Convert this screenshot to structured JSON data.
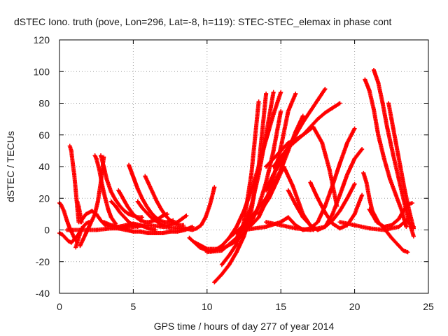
{
  "chart_data": {
    "type": "scatter",
    "title": "dSTEC Iono. truth (pove, Lon=296, Lat=-8, h=119): STEC-STEC_elemax in phase cont",
    "xlabel": "GPS time / hours of day 277 of year 2014",
    "ylabel": "dSTEC  / TECUs",
    "xlim": [
      0,
      25
    ],
    "ylim": [
      -40,
      120
    ],
    "xticks": [
      0,
      5,
      10,
      15,
      20,
      25
    ],
    "yticks": [
      -40,
      -20,
      0,
      20,
      40,
      60,
      80,
      100,
      120
    ],
    "grid": true,
    "marker": "plus",
    "color": "#ff0000",
    "series": [
      {
        "x": [
          0.0,
          0.1,
          0.3,
          0.5,
          0.7,
          0.9,
          1.1
        ],
        "y": [
          17,
          16,
          12,
          6,
          1,
          -3,
          -7
        ]
      },
      {
        "x": [
          0.0,
          0.2,
          0.4,
          0.6,
          0.8,
          1.0,
          1.2,
          1.4,
          1.6,
          1.8,
          2.0
        ],
        "y": [
          -2,
          -3,
          -5,
          -7,
          -8,
          -6,
          -4,
          -1,
          2,
          4,
          5
        ]
      },
      {
        "x": [
          0.7,
          0.8,
          0.9,
          1.0,
          1.1,
          1.2,
          1.3
        ],
        "y": [
          53,
          50,
          42,
          35,
          25,
          15,
          5
        ]
      },
      {
        "x": [
          1.1,
          1.2,
          1.3,
          1.4,
          1.5
        ],
        "y": [
          -11,
          -8,
          -5,
          -2,
          1
        ]
      },
      {
        "x": [
          1.2,
          1.3,
          1.4,
          1.5
        ],
        "y": [
          18,
          15,
          10,
          5
        ]
      },
      {
        "x": [
          1.4,
          1.6,
          1.8,
          2.0,
          2.2,
          2.4,
          2.6,
          2.8,
          3.0
        ],
        "y": [
          -10,
          -6,
          -2,
          2,
          6,
          10,
          18,
          30,
          46
        ]
      },
      {
        "x": [
          1.4,
          1.8,
          2.2,
          2.5,
          2.8,
          3.1,
          3.5
        ],
        "y": [
          5,
          10,
          12,
          10,
          6,
          3,
          2
        ]
      },
      {
        "x": [
          2.4,
          2.5,
          2.7,
          2.9,
          3.1,
          3.3,
          3.5,
          3.8
        ],
        "y": [
          47,
          45,
          38,
          28,
          20,
          13,
          8,
          4
        ]
      },
      {
        "x": [
          2.8,
          3.0,
          3.2,
          3.5,
          3.8,
          4.1,
          4.4,
          4.7,
          5.0,
          5.3,
          5.6
        ],
        "y": [
          47,
          40,
          32,
          24,
          19,
          15,
          12,
          10,
          9,
          8,
          8
        ]
      },
      {
        "x": [
          3.0,
          3.5,
          4.0,
          4.5,
          5.0,
          5.5,
          6.0,
          6.5
        ],
        "y": [
          5,
          3,
          2,
          3,
          4,
          3,
          1,
          0
        ]
      },
      {
        "x": [
          3.5,
          3.8,
          4.1,
          4.4,
          4.7,
          5.0,
          5.3
        ],
        "y": [
          18,
          15,
          11,
          8,
          5,
          3,
          2
        ]
      },
      {
        "x": [
          4.0,
          4.3,
          4.6,
          4.9,
          5.2,
          5.5,
          5.8,
          6.1,
          6.4,
          6.7,
          7.0,
          7.3
        ],
        "y": [
          25,
          20,
          15,
          11,
          8,
          6,
          5,
          5,
          6,
          7,
          9,
          10
        ]
      },
      {
        "x": [
          4.7,
          4.9,
          5.1,
          5.3,
          5.6,
          5.9,
          6.2,
          6.5,
          6.8,
          7.1,
          7.4,
          7.7
        ],
        "y": [
          41,
          36,
          31,
          26,
          20,
          15,
          11,
          8,
          6,
          5,
          5,
          6
        ]
      },
      {
        "x": [
          5.3,
          5.6,
          5.9,
          6.2,
          6.5,
          6.8,
          7.1,
          7.4,
          7.7,
          8.0,
          8.3,
          8.6
        ],
        "y": [
          18,
          14,
          11,
          8,
          6,
          4,
          3,
          3,
          4,
          5,
          7,
          9
        ]
      },
      {
        "x": [
          5.8,
          6.0,
          6.3,
          6.6,
          6.9,
          7.2,
          7.5,
          7.8,
          8.1,
          8.4
        ],
        "y": [
          34,
          30,
          24,
          18,
          13,
          9,
          6,
          4,
          3,
          3
        ]
      },
      {
        "x": [
          0.5,
          1.5,
          2.5,
          3.5,
          4.0,
          4.5,
          5.0,
          5.5,
          6.0,
          6.5,
          7.0,
          7.5,
          8.0,
          8.5,
          9.0
        ],
        "y": [
          0,
          0,
          0,
          1,
          1,
          0,
          -1,
          -1,
          -2,
          -2,
          -2,
          -1,
          -1,
          0,
          2
        ]
      },
      {
        "x": [
          4.0,
          5.0,
          6.0,
          7.0,
          8.0,
          8.5,
          9.0,
          9.3,
          9.6,
          9.9,
          10.2,
          10.5
        ],
        "y": [
          1,
          2,
          3,
          2,
          1,
          1,
          0,
          1,
          3,
          8,
          16,
          27
        ]
      },
      {
        "x": [
          8.8,
          9.5,
          10.0,
          10.5,
          11.0,
          11.5,
          12.0,
          12.5,
          13.0,
          13.5,
          14.0,
          14.5,
          15.0
        ],
        "y": [
          -5,
          -11,
          -13,
          -13,
          -10,
          -5,
          2,
          12,
          25,
          40,
          57,
          73,
          87
        ]
      },
      {
        "x": [
          9.2,
          10.0,
          11.0,
          12.0,
          12.5,
          13.0,
          13.5,
          14.0,
          14.5,
          15.0
        ],
        "y": [
          -8,
          -12,
          -12,
          -7,
          -2,
          5,
          15,
          30,
          50,
          75
        ]
      },
      {
        "x": [
          10.0,
          11.0,
          12.0,
          12.5,
          13.0,
          13.5,
          14.0,
          14.5
        ],
        "y": [
          -14,
          -13,
          -5,
          3,
          15,
          35,
          60,
          87
        ]
      },
      {
        "x": [
          10.5,
          11.0,
          11.5,
          12.0,
          12.5,
          13.0,
          13.5,
          14.0
        ],
        "y": [
          -33,
          -28,
          -22,
          -14,
          -4,
          12,
          40,
          86
        ]
      },
      {
        "x": [
          11.0,
          11.5,
          12.0,
          12.5,
          13.0,
          13.5
        ],
        "y": [
          -22,
          -16,
          -9,
          5,
          35,
          81
        ]
      },
      {
        "x": [
          11.5,
          12.0,
          12.5,
          13.0,
          13.5,
          14.0,
          14.5,
          15.0,
          15.5,
          16.0,
          16.5
        ],
        "y": [
          -5,
          -1,
          3,
          8,
          14,
          20,
          28,
          38,
          50,
          62,
          72
        ]
      },
      {
        "x": [
          12.0,
          13.0,
          13.5,
          14.0,
          14.5,
          15.0,
          15.5,
          16.0
        ],
        "y": [
          -2,
          3,
          8,
          18,
          33,
          52,
          75,
          86
        ]
      },
      {
        "x": [
          14.0,
          14.5,
          15.0,
          15.5,
          16.0,
          16.5,
          17.0,
          17.5,
          18.0
        ],
        "y": [
          25,
          35,
          43,
          52,
          60,
          68,
          75,
          82,
          89
        ]
      },
      {
        "x": [
          14.0,
          15.0,
          15.5,
          16.0,
          16.5,
          17.0,
          17.5,
          18.0,
          18.5,
          19.0
        ],
        "y": [
          40,
          50,
          55,
          57,
          60,
          65,
          70,
          74,
          77,
          80
        ]
      },
      {
        "x": [
          14.5,
          15.5,
          16.5,
          17.2,
          17.8,
          18.3,
          18.8
        ],
        "y": [
          40,
          52,
          60,
          65,
          55,
          38,
          15
        ]
      },
      {
        "x": [
          14.0,
          15.0,
          16.0,
          17.0,
          18.0,
          18.5,
          19.0,
          19.5,
          20.0,
          20.5
        ],
        "y": [
          5,
          3,
          1,
          0,
          2,
          10,
          22,
          35,
          45,
          51
        ]
      },
      {
        "x": [
          13.5,
          14.2,
          14.8,
          15.2,
          15.8,
          16.5,
          17.2
        ],
        "y": [
          10,
          20,
          32,
          40,
          28,
          10,
          0
        ]
      },
      {
        "x": [
          12.5,
          14.0,
          15.0,
          15.5,
          16.0,
          16.5,
          17.0,
          17.5,
          18.0,
          18.5,
          19.0,
          19.5,
          20.0
        ],
        "y": [
          0,
          2,
          5,
          8,
          3,
          0,
          1,
          5,
          15,
          28,
          42,
          55,
          64
        ]
      },
      {
        "x": [
          15.5,
          16.0,
          16.5,
          17.0,
          17.5,
          18.0,
          18.5,
          19.0,
          19.5,
          20.0
        ],
        "y": [
          25,
          16,
          8,
          3,
          0,
          2,
          6,
          12,
          20,
          29
        ]
      },
      {
        "x": [
          17.0,
          17.5,
          18.0,
          18.5,
          19.0,
          19.5,
          20.0,
          20.5
        ],
        "y": [
          30,
          20,
          11,
          4,
          1,
          3,
          10,
          22
        ]
      },
      {
        "x": [
          20.6,
          20.8,
          21.0,
          21.2,
          21.6,
          22.0,
          22.5,
          23.0,
          23.3,
          23.6
        ],
        "y": [
          36,
          30,
          20,
          12,
          5,
          1,
          -5,
          -10,
          -13,
          -14
        ]
      },
      {
        "x": [
          20.7,
          21.0,
          21.3,
          21.6,
          22.0,
          22.4,
          22.8,
          23.2,
          23.5
        ],
        "y": [
          95,
          88,
          76,
          60,
          45,
          32,
          22,
          12,
          2
        ]
      },
      {
        "x": [
          21.3,
          21.6,
          21.9,
          22.2,
          22.6,
          23.0,
          23.4,
          23.7,
          24.0
        ],
        "y": [
          101,
          93,
          80,
          65,
          48,
          32,
          16,
          5,
          -4
        ]
      },
      {
        "x": [
          22.3,
          22.5,
          22.8,
          23.1,
          23.4,
          23.7,
          24.0
        ],
        "y": [
          80,
          70,
          55,
          40,
          25,
          12,
          1
        ]
      },
      {
        "x": [
          21.0,
          21.5,
          22.0,
          22.5,
          23.0,
          23.3,
          23.6,
          23.9
        ],
        "y": [
          13,
          5,
          2,
          3,
          7,
          12,
          16,
          17
        ]
      },
      {
        "x": [
          19.0,
          20.0,
          21.0,
          22.0,
          23.0,
          23.5,
          24.0
        ],
        "y": [
          5,
          3,
          1,
          0,
          2,
          6,
          2
        ]
      }
    ]
  }
}
